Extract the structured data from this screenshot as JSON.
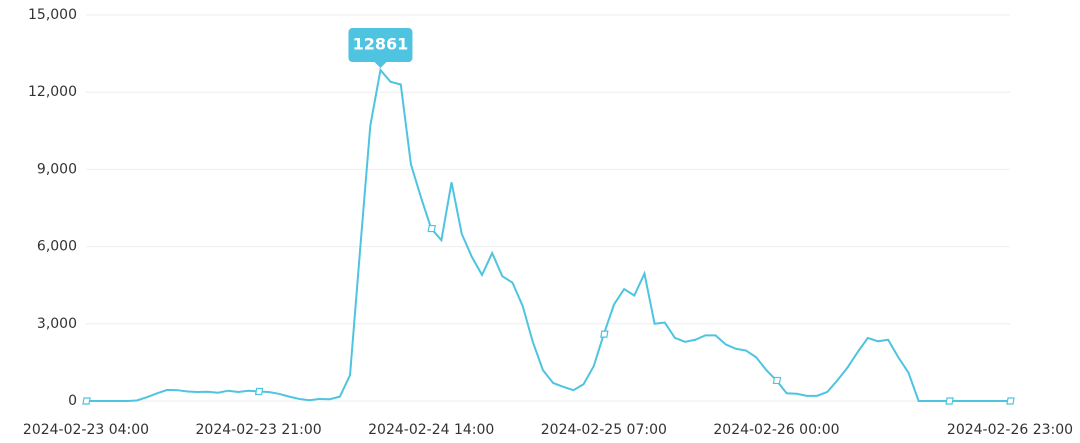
{
  "chart_data": {
    "type": "line",
    "categories": [
      "2024-02-23 04:00",
      null,
      null,
      null,
      null,
      null,
      null,
      null,
      null,
      null,
      null,
      null,
      null,
      null,
      null,
      null,
      null,
      "2024-02-23 21:00",
      null,
      null,
      null,
      null,
      null,
      null,
      null,
      null,
      null,
      null,
      null,
      null,
      null,
      null,
      null,
      null,
      "2024-02-24 14:00",
      null,
      null,
      null,
      null,
      null,
      null,
      null,
      null,
      null,
      null,
      null,
      null,
      null,
      null,
      null,
      null,
      "2024-02-25 07:00",
      null,
      null,
      null,
      null,
      null,
      null,
      null,
      null,
      null,
      null,
      null,
      null,
      null,
      null,
      null,
      null,
      "2024-02-26 00:00",
      null,
      null,
      null,
      null,
      null,
      null,
      null,
      null,
      null,
      null,
      null,
      null,
      null,
      null,
      null,
      null,
      null,
      null,
      null,
      null,
      null,
      null,
      "2024-02-26 23:00"
    ],
    "values": [
      0,
      0,
      0,
      0,
      0,
      20,
      150,
      300,
      430,
      420,
      370,
      350,
      360,
      320,
      400,
      350,
      400,
      370,
      350,
      280,
      170,
      80,
      30,
      80,
      70,
      170,
      1000,
      5900,
      10700,
      12861,
      12400,
      12300,
      9200,
      7900,
      6700,
      6250,
      8500,
      6500,
      5600,
      4900,
      5750,
      4850,
      4600,
      3700,
      2300,
      1200,
      700,
      550,
      420,
      650,
      1350,
      2600,
      3750,
      4350,
      4100,
      4950,
      3000,
      3050,
      2450,
      2300,
      2380,
      2550,
      2550,
      2200,
      2030,
      1960,
      1700,
      1200,
      800,
      300,
      280,
      200,
      200,
      350,
      800,
      1300,
      1900,
      2450,
      2320,
      2380,
      1700,
      1100,
      0,
      0,
      0,
      0,
      0,
      0,
      0,
      0,
      0,
      0
    ],
    "color": "#4ec4e0",
    "ylim": [
      0,
      15000
    ],
    "yticks": [
      0,
      {
        "value": 3000,
        "label": "3,000"
      },
      {
        "value": 6000,
        "label": "6,000"
      },
      {
        "value": 9000,
        "label": "9,000"
      },
      {
        "value": 12000,
        "label": "12,000"
      },
      {
        "value": 15000,
        "label": "15,000"
      }
    ],
    "grid": true
  }
}
